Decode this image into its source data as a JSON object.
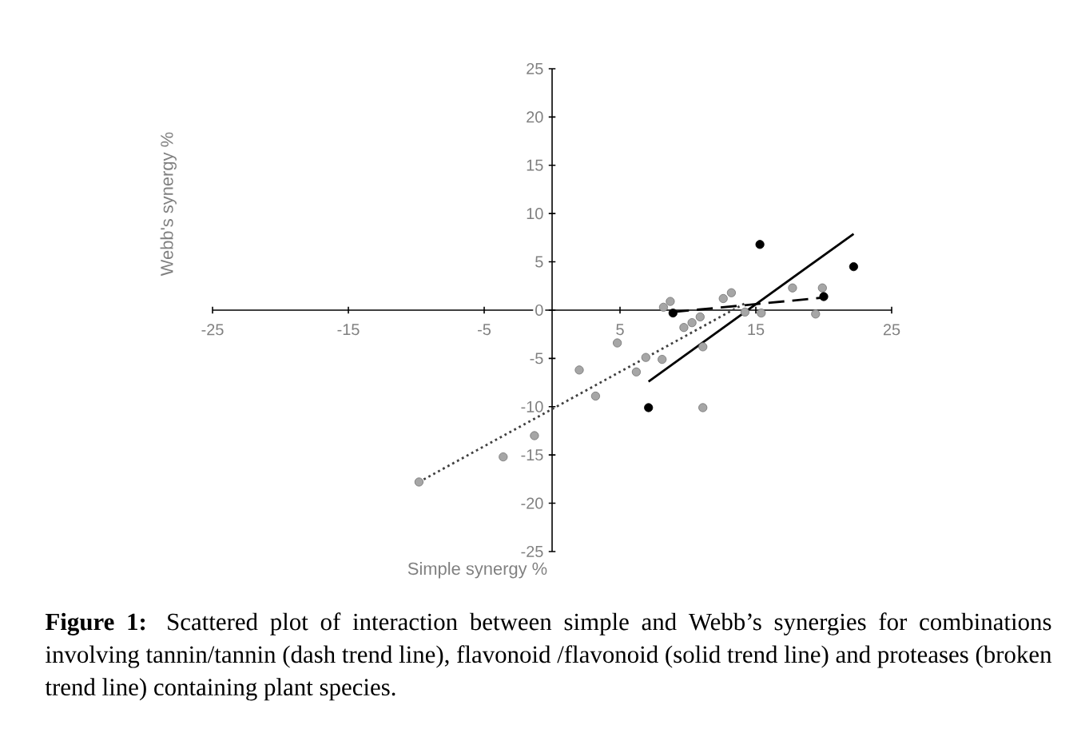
{
  "chart_data": {
    "type": "scatter",
    "xlabel": "Simple synergy %",
    "ylabel": "Webb's synergy %",
    "xlim": [
      -25,
      25
    ],
    "ylim": [
      -25,
      25
    ],
    "xticks": [
      -25,
      -15,
      -5,
      5,
      15,
      25
    ],
    "yticks": [
      -25,
      -20,
      -15,
      -10,
      -5,
      0,
      5,
      10,
      15,
      20,
      25
    ],
    "grid": false,
    "annotations": [
      "**Figure 1:** Scattered plot of interaction between simple and Webb’s synergies for combinations involving tannin/tannin (dash trend line), flavonoid /flavonoid (solid trend line) and proteases (broken trend line) containing plant species."
    ],
    "series": [
      {
        "marker": "circle",
        "color": "#a6a6a6",
        "x": [
          8.2,
          8.7,
          9.7,
          10.3,
          10.9,
          11.1,
          12.6,
          13.2,
          14.2,
          15.4,
          17.7,
          19.4,
          19.9,
          11.1,
          8.1,
          6.9,
          6.2,
          4.8,
          2.0,
          3.2,
          -1.3,
          -3.6,
          -9.8
        ],
        "values": [
          0.3,
          0.9,
          -1.8,
          -1.3,
          -0.7,
          -3.8,
          1.2,
          1.8,
          -0.2,
          -0.3,
          2.3,
          -0.4,
          2.3,
          -10.1,
          -5.1,
          -4.9,
          -6.4,
          -3.4,
          -6.2,
          -8.9,
          -13,
          -15.2,
          -17.8
        ]
      },
      {
        "marker": "circle",
        "color": "#000000",
        "x": [
          15.3,
          22.2,
          8.9,
          20,
          7.1
        ],
        "values": [
          6.8,
          4.5,
          -0.3,
          1.4,
          -10.1
        ]
      },
      {
        "type": "line",
        "line_style": "dotted",
        "color": "#404040",
        "x": [
          -9.8,
          14.2
        ],
        "values": [
          -17.8,
          0.7
        ]
      },
      {
        "type": "line",
        "line_style": "solid",
        "color": "#000000",
        "x": [
          7.1,
          22.2
        ],
        "values": [
          -7.4,
          7.9
        ]
      },
      {
        "type": "line",
        "line_style": "dashed",
        "color": "#000000",
        "x": [
          8.9,
          20
        ],
        "values": [
          -0.2,
          1.3
        ]
      }
    ]
  }
}
